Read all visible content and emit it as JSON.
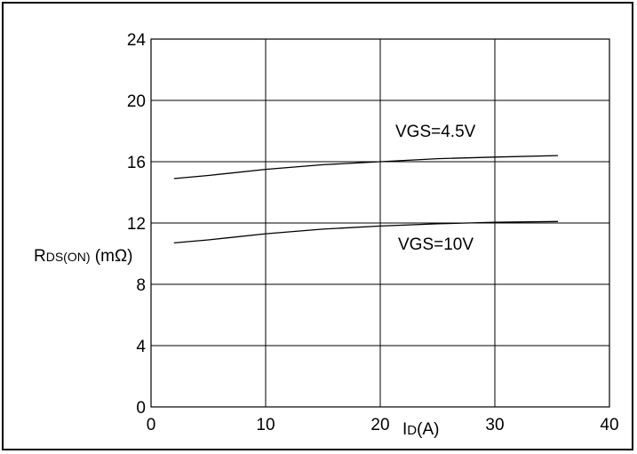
{
  "chart_data": {
    "type": "line",
    "title": "",
    "xlabel": "ID(A)",
    "xlabel_parts": {
      "main": "I",
      "sub": "D",
      "suffix": "(A)"
    },
    "ylabel": "RDS(ON) (mΩ)",
    "ylabel_parts": {
      "main": "R",
      "sub": "DS(ON)",
      "suffix": " (mΩ)"
    },
    "xlim": [
      0,
      40
    ],
    "ylim": [
      0,
      24
    ],
    "xticks": [
      0,
      10,
      20,
      30,
      40
    ],
    "yticks": [
      0,
      4,
      8,
      12,
      16,
      20,
      24
    ],
    "grid": true,
    "legend": "none",
    "series": [
      {
        "name": "VGS=4.5V",
        "x": [
          2,
          5,
          10,
          15,
          20,
          25,
          30,
          35.5
        ],
        "y": [
          14.9,
          15.1,
          15.5,
          15.8,
          16.0,
          16.2,
          16.3,
          16.4
        ]
      },
      {
        "name": "VGS=10V",
        "x": [
          2,
          5,
          10,
          15,
          20,
          25,
          30,
          35.5
        ],
        "y": [
          10.7,
          10.9,
          11.3,
          11.6,
          11.8,
          11.95,
          12.05,
          12.1
        ]
      }
    ],
    "line_color": "#000000",
    "grid_color": "#000000"
  }
}
